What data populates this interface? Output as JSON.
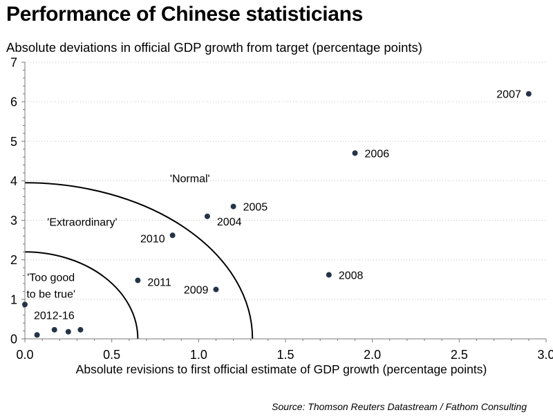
{
  "chart_data": {
    "type": "scatter",
    "title": "Performance of Chinese statisticians",
    "subtitle": "Absolute deviations in official GDP growth from target (percentage points)",
    "xlabel": "Absolute revisions to first official estimate of GDP growth (percentage points)",
    "ylabel": "",
    "xlim": [
      0,
      3
    ],
    "ylim": [
      0,
      7
    ],
    "x_ticks": [
      "0.0",
      "0.5",
      "1.0",
      "1.5",
      "2.0",
      "2.5",
      "3.0"
    ],
    "y_ticks": [
      "0",
      "1",
      "2",
      "3",
      "4",
      "5",
      "6",
      "7"
    ],
    "grid": "horizontal dotted",
    "marker_color": "#243447",
    "points": [
      {
        "label": "2007",
        "x": 2.9,
        "y": 6.2
      },
      {
        "label": "2006",
        "x": 1.9,
        "y": 4.7
      },
      {
        "label": "2005",
        "x": 1.2,
        "y": 3.35
      },
      {
        "label": "2004",
        "x": 1.05,
        "y": 3.1
      },
      {
        "label": "2010",
        "x": 0.85,
        "y": 2.62
      },
      {
        "label": "2011",
        "x": 0.65,
        "y": 1.48
      },
      {
        "label": "2009",
        "x": 1.1,
        "y": 1.25
      },
      {
        "label": "2008",
        "x": 1.75,
        "y": 1.62
      },
      {
        "label": "2012-16",
        "x": 0.0,
        "y": 0.87
      },
      {
        "label": "",
        "x": 0.07,
        "y": 0.1
      },
      {
        "label": "",
        "x": 0.17,
        "y": 0.23
      },
      {
        "label": "",
        "x": 0.25,
        "y": 0.18
      },
      {
        "label": "",
        "x": 0.32,
        "y": 0.23
      }
    ],
    "boundaries": [
      {
        "name": "inner",
        "x_radius": 0.65,
        "y_radius": 2.2
      },
      {
        "name": "outer",
        "x_radius": 1.31,
        "y_radius": 3.95
      }
    ],
    "region_labels": [
      {
        "text": "'Normal'",
        "x": 0.95,
        "y": 4.05
      },
      {
        "text": "'Extraordinary'",
        "x": 0.33,
        "y": 2.95
      },
      {
        "text": "'Too good",
        "x": 0.15,
        "y": 1.55
      },
      {
        "text": "to be true'",
        "x": 0.15,
        "y": 1.13
      }
    ]
  },
  "source": "Source: Thomson Reuters Datastream / Fathom Consulting"
}
